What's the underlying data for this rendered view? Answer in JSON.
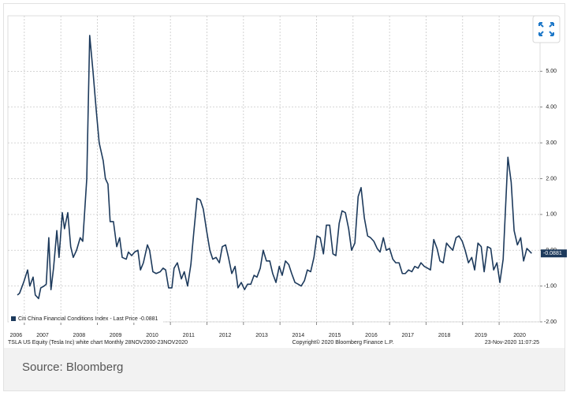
{
  "chart_data": {
    "type": "line",
    "x": [
      2006.81,
      2006.87,
      2006.98,
      2007.09,
      2007.15,
      2007.24,
      2007.3,
      2007.39,
      2007.45,
      2007.54,
      2007.6,
      2007.67,
      2007.73,
      2007.8,
      2007.89,
      2007.95,
      2008.04,
      2008.1,
      2008.19,
      2008.27,
      2008.34,
      2008.43,
      2008.53,
      2008.6,
      2008.71,
      2008.79,
      2008.88,
      2008.97,
      2009.05,
      2009.16,
      2009.22,
      2009.29,
      2009.35,
      2009.44,
      2009.53,
      2009.61,
      2009.68,
      2009.79,
      2009.85,
      2009.94,
      2010.02,
      2010.11,
      2010.18,
      2010.26,
      2010.37,
      2010.43,
      2010.52,
      2010.61,
      2010.72,
      2010.8,
      2010.87,
      2010.95,
      2011.04,
      2011.1,
      2011.19,
      2011.3,
      2011.38,
      2011.47,
      2011.56,
      2011.64,
      2011.73,
      2011.82,
      2011.9,
      2011.99,
      2012.08,
      2012.16,
      2012.25,
      2012.34,
      2012.42,
      2012.51,
      2012.59,
      2012.68,
      2012.77,
      2012.85,
      2012.94,
      2013.03,
      2013.11,
      2013.2,
      2013.29,
      2013.37,
      2013.46,
      2013.54,
      2013.63,
      2013.72,
      2013.8,
      2013.89,
      2013.98,
      2014.06,
      2014.15,
      2014.24,
      2014.32,
      2014.41,
      2014.5,
      2014.58,
      2014.67,
      2014.75,
      2014.84,
      2014.93,
      2015.01,
      2015.1,
      2015.19,
      2015.27,
      2015.36,
      2015.45,
      2015.53,
      2015.62,
      2015.7,
      2015.79,
      2015.88,
      2015.96,
      2016.05,
      2016.14,
      2016.22,
      2016.31,
      2016.4,
      2016.48,
      2016.57,
      2016.66,
      2016.74,
      2016.83,
      2016.91,
      2017.0,
      2017.09,
      2017.17,
      2017.26,
      2017.35,
      2017.43,
      2017.52,
      2017.61,
      2017.69,
      2017.78,
      2017.86,
      2017.95,
      2018.04,
      2018.12,
      2018.21,
      2018.3,
      2018.38,
      2018.47,
      2018.56,
      2018.64,
      2018.73,
      2018.82,
      2018.9,
      2018.99,
      2019.07,
      2019.16,
      2019.25,
      2019.33,
      2019.42,
      2019.51,
      2019.59,
      2019.68,
      2019.77,
      2019.85,
      2019.94,
      2020.02,
      2020.11,
      2020.24,
      2020.33,
      2020.41,
      2020.5,
      2020.59,
      2020.67,
      2020.76,
      2020.89
    ],
    "series": [
      {
        "name": "Citi China Financial Conditions Index - Last Price",
        "color": "#1d3a5c",
        "values": [
          -1.25,
          -1.2,
          -0.9,
          -0.55,
          -1.0,
          -0.75,
          -1.25,
          -1.35,
          -1.05,
          -1.0,
          -0.95,
          0.35,
          -1.1,
          -0.5,
          0.55,
          -0.2,
          1.05,
          0.6,
          1.05,
          0.1,
          -0.2,
          0.0,
          0.35,
          0.25,
          2.0,
          6.0,
          5.0,
          3.9,
          3.0,
          2.5,
          2.0,
          1.85,
          0.8,
          0.8,
          0.1,
          0.35,
          -0.2,
          -0.25,
          -0.05,
          -0.15,
          -0.05,
          0.0,
          -0.55,
          -0.35,
          0.15,
          0.0,
          -0.6,
          -0.65,
          -0.6,
          -0.5,
          -0.55,
          -1.05,
          -1.05,
          -0.5,
          -0.35,
          -0.8,
          -0.6,
          -1.0,
          -0.4,
          0.5,
          1.45,
          1.4,
          1.15,
          0.55,
          0.0,
          -0.25,
          -0.2,
          -0.35,
          0.1,
          0.15,
          -0.2,
          -0.65,
          -0.45,
          -1.05,
          -0.9,
          -1.1,
          -0.95,
          -0.95,
          -0.7,
          -0.75,
          -0.5,
          0.0,
          -0.3,
          -0.3,
          -0.65,
          -0.9,
          -0.45,
          -0.7,
          -0.3,
          -0.4,
          -0.65,
          -0.9,
          -0.95,
          -1.0,
          -0.85,
          -0.55,
          -0.6,
          -0.2,
          0.4,
          0.35,
          -0.1,
          0.7,
          0.7,
          -0.1,
          -0.15,
          0.75,
          1.1,
          1.05,
          0.6,
          0.0,
          0.2,
          1.5,
          1.75,
          0.9,
          0.4,
          0.35,
          0.25,
          0.05,
          -0.05,
          0.35,
          0.0,
          0.05,
          -0.25,
          -0.35,
          -0.35,
          -0.65,
          -0.65,
          -0.55,
          -0.6,
          -0.45,
          -0.5,
          -0.35,
          -0.45,
          -0.5,
          -0.55,
          0.3,
          0.05,
          -0.3,
          -0.35,
          0.2,
          0.1,
          0.0,
          0.35,
          0.4,
          0.25,
          0.0,
          -0.35,
          -0.2,
          -0.55,
          0.2,
          0.1,
          -0.6,
          0.1,
          0.05,
          -0.55,
          -0.35,
          -0.9,
          -0.25,
          2.6,
          1.9,
          0.55,
          0.15,
          0.35,
          -0.3,
          0.05,
          -0.0881
        ]
      }
    ],
    "xlim": [
      2006.55,
      2021.12
    ],
    "xticks": [
      2006,
      2007,
      2008,
      2009,
      2010,
      2011,
      2012,
      2013,
      2014,
      2015,
      2016,
      2017,
      2018,
      2019,
      2020
    ],
    "ylim": [
      -2,
      6.55
    ],
    "yticks": [
      {
        "value": -2,
        "label": "-2.00"
      },
      {
        "value": -1,
        "label": "-1.00"
      },
      {
        "value": 0,
        "label": "0.00"
      },
      {
        "value": 1,
        "label": "1.00"
      },
      {
        "value": 2,
        "label": "2.00"
      },
      {
        "value": 3,
        "label": "3.00"
      },
      {
        "value": 4,
        "label": "4.00"
      },
      {
        "value": 5,
        "label": "5.00"
      }
    ],
    "grid": true,
    "legend": "lower left",
    "annotations": [
      "TSLA US Equity (Tesla Inc) white chart  Monthly 28NOV2000-23NOV2020",
      "Copyright© 2020 Bloomberg Finance L.P.",
      "23-Nov-2020 11:07:25"
    ],
    "source": "Source: Bloomberg"
  }
}
